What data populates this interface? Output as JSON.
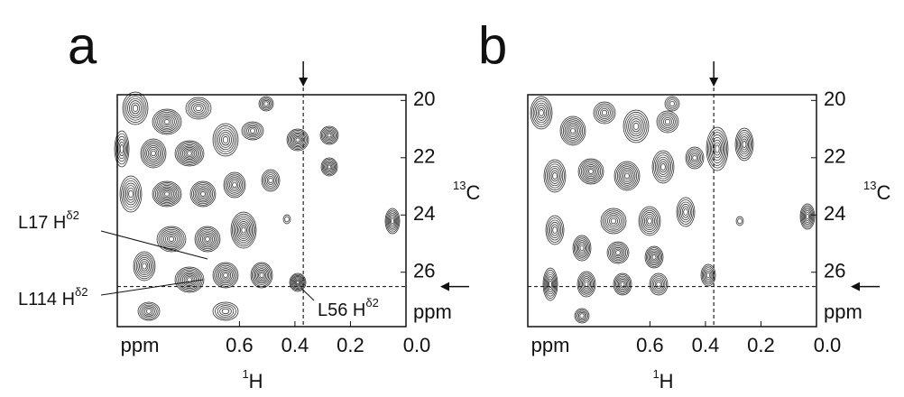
{
  "chart_data": [
    {
      "type": "contour",
      "panel": "a",
      "xlim": [
        1.04,
        0.0
      ],
      "ylim": [
        19.8,
        27.9
      ],
      "xticks": [
        0.6,
        0.4,
        0.2,
        {
          "value": 0,
          "label": "0.0"
        }
      ],
      "yticks": [
        20,
        22,
        24,
        26
      ],
      "x_unit": "ppm",
      "y_unit": "ppm",
      "x_label": {
        "sup": "1",
        "text": "H"
      },
      "y_label": {
        "sup": "13",
        "text": "C"
      },
      "crosshair": {
        "x": 0.37,
        "y": 26.5
      },
      "annotations": [
        {
          "text": "L17 H",
          "sup": "δ2"
        },
        {
          "text": "L114 H",
          "sup": "δ2"
        },
        {
          "text": "L56 H",
          "sup": "δ2"
        }
      ]
    },
    {
      "type": "contour",
      "panel": "b",
      "xlim": [
        1.04,
        0.0
      ],
      "ylim": [
        19.8,
        27.9
      ],
      "xticks": [
        0.6,
        0.4,
        0.2,
        {
          "value": 0,
          "label": "0.0"
        }
      ],
      "yticks": [
        20,
        22,
        24,
        26
      ],
      "x_unit": "ppm",
      "y_unit": "ppm",
      "x_label": {
        "sup": "1",
        "text": "H"
      },
      "y_label": {
        "sup": "13",
        "text": "C"
      },
      "crosshair": {
        "x": 0.37,
        "y": 26.5
      }
    }
  ]
}
